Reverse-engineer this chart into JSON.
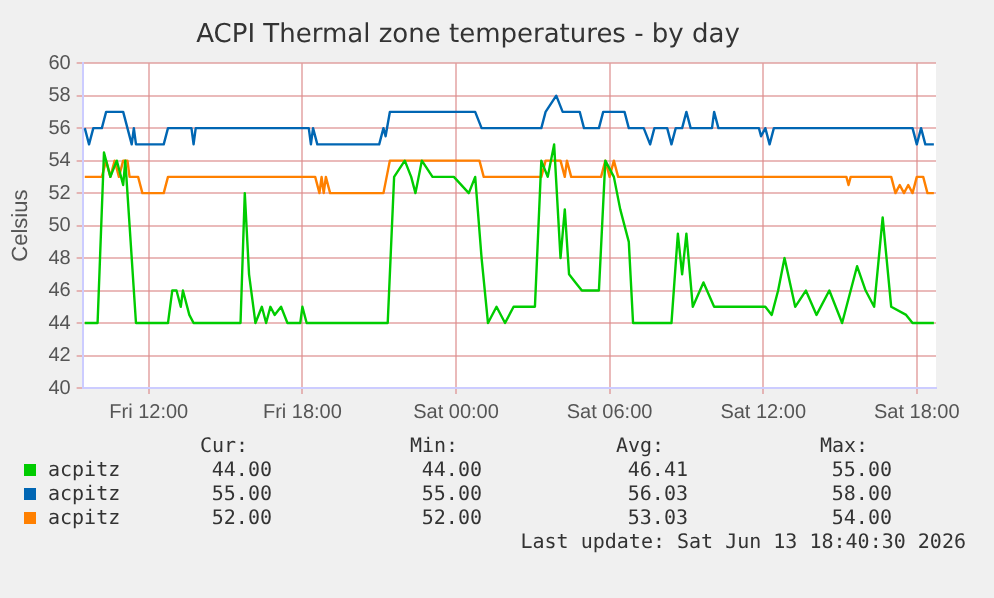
{
  "chart_data": {
    "type": "line",
    "title": "ACPI Thermal zone temperatures - by day",
    "ylabel": "Celsius",
    "xlim": [
      "2026-06-12T09:25",
      "2026-06-13T18:45"
    ],
    "xticks": [
      {
        "value": "2026-06-12T12:00",
        "label": "Fri 12:00"
      },
      {
        "value": "2026-06-12T18:00",
        "label": "Fri 18:00"
      },
      {
        "value": "2026-06-13T00:00",
        "label": "Sat 00:00"
      },
      {
        "value": "2026-06-13T06:00",
        "label": "Sat 06:00"
      },
      {
        "value": "2026-06-13T12:00",
        "label": "Sat 12:00"
      },
      {
        "value": "2026-06-13T18:00",
        "label": "Sat 18:00"
      }
    ],
    "ylim": [
      40,
      60
    ],
    "yticks": [
      40,
      42,
      44,
      46,
      48,
      50,
      52,
      54,
      56,
      58,
      60
    ],
    "grid": true,
    "legend": "bottom",
    "marker": "none",
    "line_style": "solid",
    "series": [
      {
        "name": "acpitz",
        "color": "#00cc00",
        "x": [
          "2026-06-12T09:30",
          "2026-06-12T10:00",
          "2026-06-12T10:15",
          "2026-06-12T10:30",
          "2026-06-12T10:45",
          "2026-06-12T11:00",
          "2026-06-12T11:05",
          "2026-06-12T11:15",
          "2026-06-12T11:30",
          "2026-06-12T12:45",
          "2026-06-12T12:55",
          "2026-06-12T13:05",
          "2026-06-12T13:15",
          "2026-06-12T13:20",
          "2026-06-12T13:35",
          "2026-06-12T13:45",
          "2026-06-12T15:35",
          "2026-06-12T15:45",
          "2026-06-12T15:55",
          "2026-06-12T16:00",
          "2026-06-12T16:10",
          "2026-06-12T16:25",
          "2026-06-12T16:35",
          "2026-06-12T16:45",
          "2026-06-12T16:55",
          "2026-06-12T17:10",
          "2026-06-12T17:25",
          "2026-06-12T17:55",
          "2026-06-12T18:00",
          "2026-06-12T18:10",
          "2026-06-12T21:20",
          "2026-06-12T21:35",
          "2026-06-12T22:00",
          "2026-06-12T22:15",
          "2026-06-12T22:25",
          "2026-06-12T22:40",
          "2026-06-12T23:05",
          "2026-06-12T23:55",
          "2026-06-13T00:30",
          "2026-06-13T00:45",
          "2026-06-13T01:00",
          "2026-06-13T01:15",
          "2026-06-13T01:35",
          "2026-06-13T01:55",
          "2026-06-13T02:15",
          "2026-06-13T02:35",
          "2026-06-13T03:05",
          "2026-06-13T03:20",
          "2026-06-13T03:35",
          "2026-06-13T03:50",
          "2026-06-13T04:05",
          "2026-06-13T04:15",
          "2026-06-13T04:25",
          "2026-06-13T04:40",
          "2026-06-13T04:55",
          "2026-06-13T05:35",
          "2026-06-13T05:50",
          "2026-06-13T06:10",
          "2026-06-13T06:25",
          "2026-06-13T06:45",
          "2026-06-13T06:55",
          "2026-06-13T08:25",
          "2026-06-13T08:40",
          "2026-06-13T08:50",
          "2026-06-13T09:00",
          "2026-06-13T09:15",
          "2026-06-13T09:40",
          "2026-06-13T10:05",
          "2026-06-13T10:45",
          "2026-06-13T12:05",
          "2026-06-13T12:20",
          "2026-06-13T12:35",
          "2026-06-13T12:50",
          "2026-06-13T13:15",
          "2026-06-13T13:40",
          "2026-06-13T14:05",
          "2026-06-13T14:35",
          "2026-06-13T15:05",
          "2026-06-13T15:40",
          "2026-06-13T16:00",
          "2026-06-13T16:20",
          "2026-06-13T16:40",
          "2026-06-13T17:00",
          "2026-06-13T17:35",
          "2026-06-13T17:50",
          "2026-06-13T18:40"
        ],
        "values": [
          44,
          44,
          54.5,
          53,
          54,
          52.5,
          54,
          50,
          44,
          44,
          46,
          46,
          45,
          46,
          44.5,
          44,
          44,
          52,
          47,
          46,
          44,
          45,
          44,
          45,
          44.5,
          45,
          44,
          44,
          45,
          44,
          44,
          53,
          54,
          53,
          52,
          54,
          53,
          53,
          52,
          53,
          48,
          44,
          45,
          44,
          45,
          45,
          45,
          54,
          53,
          55,
          48,
          51,
          47,
          46.5,
          46,
          46,
          54,
          53,
          51,
          49,
          44,
          44,
          49.5,
          47,
          49.5,
          45,
          46.5,
          45,
          45,
          45,
          44.5,
          46,
          48,
          45,
          46,
          44.5,
          46,
          44,
          47.5,
          46,
          45,
          50.5,
          45,
          44.5,
          44,
          44
        ]
      },
      {
        "name": "acpitz",
        "color": "#0066b3",
        "x": [
          "2026-06-12T09:30",
          "2026-06-12T09:40",
          "2026-06-12T09:50",
          "2026-06-12T10:10",
          "2026-06-12T10:20",
          "2026-06-12T11:00",
          "2026-06-12T11:10",
          "2026-06-12T11:20",
          "2026-06-12T11:25",
          "2026-06-12T11:30",
          "2026-06-12T12:35",
          "2026-06-12T12:45",
          "2026-06-12T13:40",
          "2026-06-12T13:45",
          "2026-06-12T13:50",
          "2026-06-12T18:15",
          "2026-06-12T18:20",
          "2026-06-12T18:25",
          "2026-06-12T18:35",
          "2026-06-12T21:00",
          "2026-06-12T21:10",
          "2026-06-12T21:15",
          "2026-06-12T21:25",
          "2026-06-13T00:45",
          "2026-06-13T01:00",
          "2026-06-13T03:20",
          "2026-06-13T03:30",
          "2026-06-13T03:55",
          "2026-06-13T04:10",
          "2026-06-13T04:50",
          "2026-06-13T05:00",
          "2026-06-13T05:35",
          "2026-06-13T05:45",
          "2026-06-13T06:35",
          "2026-06-13T06:45",
          "2026-06-13T07:20",
          "2026-06-13T07:35",
          "2026-06-13T07:45",
          "2026-06-13T08:15",
          "2026-06-13T08:25",
          "2026-06-13T08:35",
          "2026-06-13T08:50",
          "2026-06-13T09:00",
          "2026-06-13T09:10",
          "2026-06-13T10:00",
          "2026-06-13T10:05",
          "2026-06-13T10:15",
          "2026-06-13T11:50",
          "2026-06-13T11:55",
          "2026-06-13T12:05",
          "2026-06-13T12:15",
          "2026-06-13T12:25",
          "2026-06-13T17:50",
          "2026-06-13T18:00",
          "2026-06-13T18:10",
          "2026-06-13T18:20",
          "2026-06-13T18:40"
        ],
        "values": [
          56,
          55,
          56,
          56,
          57,
          57,
          56,
          55,
          56,
          55,
          55,
          56,
          56,
          55,
          56,
          56,
          55,
          56,
          55,
          55,
          56,
          55.5,
          57,
          57,
          56,
          56,
          57,
          58,
          57,
          57,
          56,
          56,
          57,
          57,
          56,
          56,
          55,
          56,
          56,
          55,
          56,
          56,
          57,
          56,
          56,
          57,
          56,
          56,
          55.5,
          56,
          55,
          56,
          56,
          55,
          56,
          55,
          55
        ]
      },
      {
        "name": "acpitz",
        "color": "#ff8000",
        "x": [
          "2026-06-12T09:30",
          "2026-06-12T10:10",
          "2026-06-12T10:20",
          "2026-06-12T10:30",
          "2026-06-12T10:40",
          "2026-06-12T10:50",
          "2026-06-12T11:00",
          "2026-06-12T11:10",
          "2026-06-12T11:15",
          "2026-06-12T11:35",
          "2026-06-12T11:45",
          "2026-06-12T12:35",
          "2026-06-12T12:45",
          "2026-06-12T18:30",
          "2026-06-12T18:40",
          "2026-06-12T18:45",
          "2026-06-12T18:50",
          "2026-06-12T18:55",
          "2026-06-12T19:05",
          "2026-06-12T21:10",
          "2026-06-12T21:25",
          "2026-06-13T00:55",
          "2026-06-13T01:05",
          "2026-06-13T03:20",
          "2026-06-13T03:30",
          "2026-06-13T04:05",
          "2026-06-13T04:15",
          "2026-06-13T04:20",
          "2026-06-13T04:30",
          "2026-06-13T05:40",
          "2026-06-13T05:50",
          "2026-06-13T06:00",
          "2026-06-13T06:10",
          "2026-06-13T06:20",
          "2026-06-13T15:15",
          "2026-06-13T15:20",
          "2026-06-13T15:25",
          "2026-06-13T17:00",
          "2026-06-13T17:10",
          "2026-06-13T17:20",
          "2026-06-13T17:30",
          "2026-06-13T17:40",
          "2026-06-13T17:50",
          "2026-06-13T18:00",
          "2026-06-13T18:15",
          "2026-06-13T18:25",
          "2026-06-13T18:40"
        ],
        "values": [
          53,
          53,
          54,
          53,
          54,
          53,
          54,
          54,
          53,
          53,
          52,
          52,
          53,
          53,
          52,
          53,
          52,
          53,
          52,
          52,
          54,
          54,
          53,
          53,
          54,
          54,
          53,
          54,
          53,
          53,
          54,
          53,
          54,
          53,
          53,
          52.5,
          53,
          53,
          52,
          52.5,
          52,
          52.5,
          52,
          53,
          53,
          52,
          52
        ]
      }
    ],
    "annotations": [
      "Cur:",
      "Min:",
      "Avg:",
      "Max:",
      "44.00",
      "44.00",
      "46.41",
      "55.00",
      "55.00",
      "55.00",
      "56.03",
      "58.00",
      "52.00",
      "52.00",
      "53.03",
      "54.00",
      "Last update: Sat Jun 13 18:40:30 2026"
    ]
  }
}
